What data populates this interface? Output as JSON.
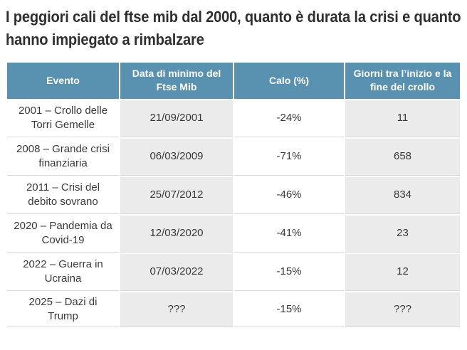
{
  "title": "I peggiori cali del ftse mib dal 2000, quanto è durata la crisi e quanto hanno impiegato a rimbalzare",
  "colors": {
    "header_bg": "#5892b0",
    "header_text": "#ffffff",
    "striped_column_bg": "#ebebeb",
    "row_border": "#d9d9d9",
    "title_text": "#2f2f2f",
    "cell_text": "#3a3a3a"
  },
  "table": {
    "headers": [
      "Evento",
      "Data di minimo del Ftse Mib",
      "Calo (%)",
      "Giorni tra l’inizio e la fine del crollo"
    ],
    "rows": [
      {
        "event": "2001 – Crollo delle Torri Gemelle",
        "date": "21/09/2001",
        "drop": "-24%",
        "days": "11"
      },
      {
        "event": "2008 – Grande crisi finanziaria",
        "date": "06/03/2009",
        "drop": "-71%",
        "days": "658"
      },
      {
        "event": "2011 – Crisi del debito sovrano",
        "date": "25/07/2012",
        "drop": "-46%",
        "days": "834"
      },
      {
        "event": "2020 – Pandemia da Covid-19",
        "date": "12/03/2020",
        "drop": "-41%",
        "days": "23"
      },
      {
        "event": "2022 – Guerra in Ucraina",
        "date": "07/03/2022",
        "drop": "-15%",
        "days": "12"
      },
      {
        "event": "2025 – Dazi di Trump",
        "date": "???",
        "drop": "-15%",
        "days": "???"
      }
    ]
  },
  "chart_data": {
    "type": "table",
    "title": "I peggiori cali del ftse mib dal 2000, quanto è durata la crisi e quanto hanno impiegato a rimbalzare",
    "columns": [
      "Evento",
      "Data di minimo del Ftse Mib",
      "Calo (%)",
      "Giorni tra l’inizio e la fine del crollo"
    ],
    "rows": [
      [
        "2001 – Crollo delle Torri Gemelle",
        "21/09/2001",
        "-24%",
        "11"
      ],
      [
        "2008 – Grande crisi finanziaria",
        "06/03/2009",
        "-71%",
        "658"
      ],
      [
        "2011 – Crisi del debito sovrano",
        "25/07/2012",
        "-46%",
        "834"
      ],
      [
        "2020 – Pandemia da Covid-19",
        "12/03/2020",
        "-41%",
        "23"
      ],
      [
        "2022 – Guerra in Ucraina",
        "07/03/2022",
        "-15%",
        "12"
      ],
      [
        "2025 – Dazi di Trump",
        "???",
        "-15%",
        "???"
      ]
    ]
  }
}
